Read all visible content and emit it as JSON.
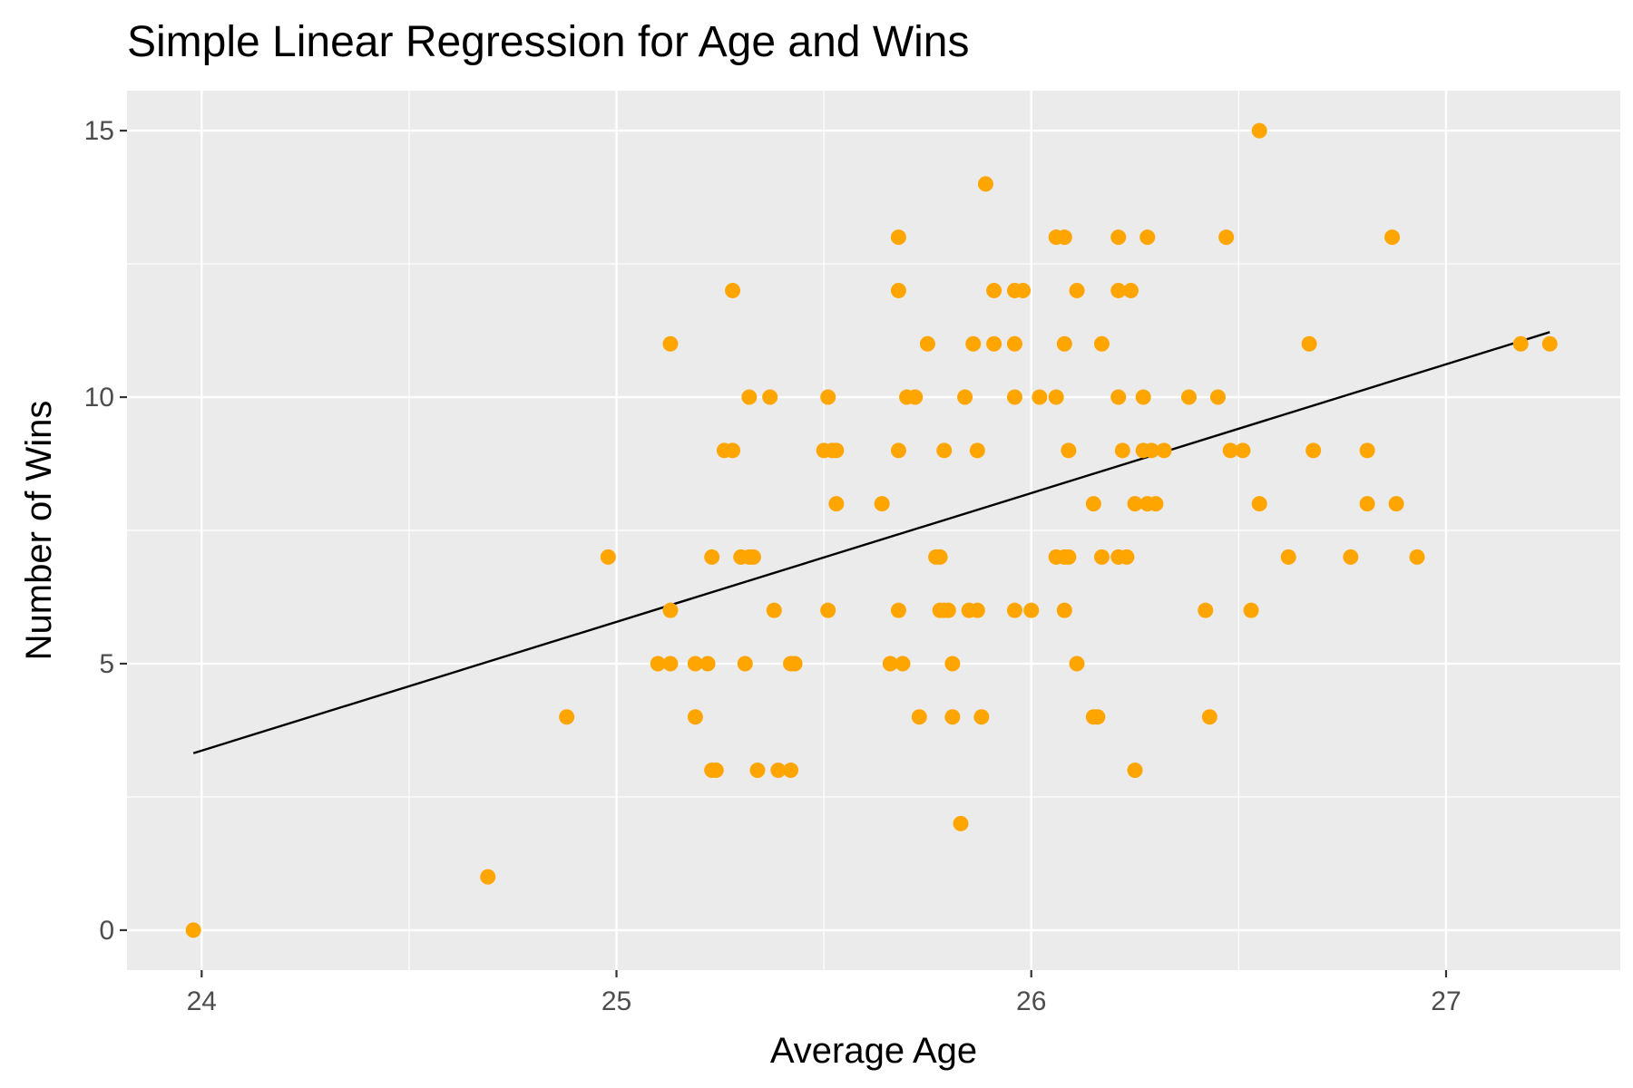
{
  "chart_data": {
    "type": "scatter",
    "title": "Simple Linear Regression for Age and Wins",
    "xlabel": "Average Age",
    "ylabel": "Number of Wins",
    "xlim": [
      23.82,
      27.42
    ],
    "ylim": [
      -0.75,
      15.75
    ],
    "xticks": [
      24,
      25,
      26,
      27
    ],
    "xtick_labels": [
      "24",
      "25",
      "26",
      "27"
    ],
    "yticks": [
      0,
      5,
      10,
      15
    ],
    "ytick_labels": [
      "0",
      "5",
      "10",
      "15"
    ],
    "x_minor": [
      24.5,
      25.5,
      26.5
    ],
    "y_minor": [
      2.5,
      7.5,
      12.5
    ],
    "grid": true,
    "legend": "none",
    "colors": {
      "panel": "#ebebeb",
      "grid": "#ffffff",
      "point": "#ffa500",
      "line": "#000000",
      "tick": "#333333"
    },
    "regression_line": {
      "x": [
        23.98,
        27.25
      ],
      "y": [
        3.32,
        11.22
      ]
    },
    "series": [
      {
        "points": [
          {
            "x": 23.98,
            "y": 0
          },
          {
            "x": 24.69,
            "y": 1
          },
          {
            "x": 24.88,
            "y": 4
          },
          {
            "x": 24.98,
            "y": 7
          },
          {
            "x": 25.1,
            "y": 5
          },
          {
            "x": 25.13,
            "y": 5
          },
          {
            "x": 25.13,
            "y": 11
          },
          {
            "x": 25.13,
            "y": 6
          },
          {
            "x": 25.19,
            "y": 5
          },
          {
            "x": 25.19,
            "y": 4
          },
          {
            "x": 25.22,
            "y": 5
          },
          {
            "x": 25.23,
            "y": 7
          },
          {
            "x": 25.23,
            "y": 3
          },
          {
            "x": 25.24,
            "y": 3
          },
          {
            "x": 25.26,
            "y": 9
          },
          {
            "x": 25.28,
            "y": 9
          },
          {
            "x": 25.28,
            "y": 12
          },
          {
            "x": 25.3,
            "y": 7
          },
          {
            "x": 25.31,
            "y": 5
          },
          {
            "x": 25.32,
            "y": 7
          },
          {
            "x": 25.32,
            "y": 10
          },
          {
            "x": 25.33,
            "y": 7
          },
          {
            "x": 25.34,
            "y": 3
          },
          {
            "x": 25.37,
            "y": 10
          },
          {
            "x": 25.38,
            "y": 6
          },
          {
            "x": 25.39,
            "y": 3
          },
          {
            "x": 25.42,
            "y": 3
          },
          {
            "x": 25.42,
            "y": 5
          },
          {
            "x": 25.43,
            "y": 5
          },
          {
            "x": 25.5,
            "y": 9
          },
          {
            "x": 25.51,
            "y": 10
          },
          {
            "x": 25.51,
            "y": 6
          },
          {
            "x": 25.52,
            "y": 9
          },
          {
            "x": 25.53,
            "y": 8
          },
          {
            "x": 25.53,
            "y": 9
          },
          {
            "x": 25.64,
            "y": 8
          },
          {
            "x": 25.66,
            "y": 5
          },
          {
            "x": 25.68,
            "y": 13
          },
          {
            "x": 25.68,
            "y": 12
          },
          {
            "x": 25.68,
            "y": 9
          },
          {
            "x": 25.68,
            "y": 6
          },
          {
            "x": 25.69,
            "y": 5
          },
          {
            "x": 25.7,
            "y": 10
          },
          {
            "x": 25.72,
            "y": 10
          },
          {
            "x": 25.73,
            "y": 4
          },
          {
            "x": 25.75,
            "y": 11
          },
          {
            "x": 25.77,
            "y": 7
          },
          {
            "x": 25.78,
            "y": 7
          },
          {
            "x": 25.78,
            "y": 6
          },
          {
            "x": 25.79,
            "y": 9
          },
          {
            "x": 25.79,
            "y": 6
          },
          {
            "x": 25.8,
            "y": 6
          },
          {
            "x": 25.81,
            "y": 5
          },
          {
            "x": 25.81,
            "y": 4
          },
          {
            "x": 25.83,
            "y": 2
          },
          {
            "x": 25.84,
            "y": 10
          },
          {
            "x": 25.85,
            "y": 6
          },
          {
            "x": 25.86,
            "y": 11
          },
          {
            "x": 25.87,
            "y": 9
          },
          {
            "x": 25.87,
            "y": 6
          },
          {
            "x": 25.88,
            "y": 4
          },
          {
            "x": 25.89,
            "y": 14
          },
          {
            "x": 25.91,
            "y": 12
          },
          {
            "x": 25.91,
            "y": 11
          },
          {
            "x": 25.96,
            "y": 12
          },
          {
            "x": 25.96,
            "y": 11
          },
          {
            "x": 25.96,
            "y": 10
          },
          {
            "x": 25.96,
            "y": 6
          },
          {
            "x": 25.98,
            "y": 12
          },
          {
            "x": 26.0,
            "y": 6
          },
          {
            "x": 26.02,
            "y": 10
          },
          {
            "x": 26.06,
            "y": 10
          },
          {
            "x": 26.06,
            "y": 7
          },
          {
            "x": 26.06,
            "y": 13
          },
          {
            "x": 26.08,
            "y": 13
          },
          {
            "x": 26.08,
            "y": 11
          },
          {
            "x": 26.08,
            "y": 6
          },
          {
            "x": 26.08,
            "y": 7
          },
          {
            "x": 26.09,
            "y": 9
          },
          {
            "x": 26.09,
            "y": 7
          },
          {
            "x": 26.11,
            "y": 12
          },
          {
            "x": 26.11,
            "y": 5
          },
          {
            "x": 26.15,
            "y": 8
          },
          {
            "x": 26.15,
            "y": 4
          },
          {
            "x": 26.16,
            "y": 4
          },
          {
            "x": 26.17,
            "y": 11
          },
          {
            "x": 26.17,
            "y": 7
          },
          {
            "x": 26.21,
            "y": 13
          },
          {
            "x": 26.21,
            "y": 12
          },
          {
            "x": 26.21,
            "y": 10
          },
          {
            "x": 26.21,
            "y": 7
          },
          {
            "x": 26.22,
            "y": 9
          },
          {
            "x": 26.23,
            "y": 7
          },
          {
            "x": 26.24,
            "y": 12
          },
          {
            "x": 26.25,
            "y": 8
          },
          {
            "x": 26.25,
            "y": 3
          },
          {
            "x": 26.27,
            "y": 9
          },
          {
            "x": 26.27,
            "y": 10
          },
          {
            "x": 26.28,
            "y": 13
          },
          {
            "x": 26.28,
            "y": 8
          },
          {
            "x": 26.29,
            "y": 9
          },
          {
            "x": 26.3,
            "y": 8
          },
          {
            "x": 26.32,
            "y": 9
          },
          {
            "x": 26.38,
            "y": 10
          },
          {
            "x": 26.42,
            "y": 6
          },
          {
            "x": 26.43,
            "y": 4
          },
          {
            "x": 26.45,
            "y": 10
          },
          {
            "x": 26.47,
            "y": 13
          },
          {
            "x": 26.48,
            "y": 9
          },
          {
            "x": 26.51,
            "y": 9
          },
          {
            "x": 26.53,
            "y": 6
          },
          {
            "x": 26.55,
            "y": 15
          },
          {
            "x": 26.55,
            "y": 8
          },
          {
            "x": 26.62,
            "y": 7
          },
          {
            "x": 26.67,
            "y": 11
          },
          {
            "x": 26.68,
            "y": 9
          },
          {
            "x": 26.77,
            "y": 7
          },
          {
            "x": 26.81,
            "y": 9
          },
          {
            "x": 26.81,
            "y": 8
          },
          {
            "x": 26.87,
            "y": 13
          },
          {
            "x": 26.88,
            "y": 8
          },
          {
            "x": 26.93,
            "y": 7
          },
          {
            "x": 27.18,
            "y": 11
          },
          {
            "x": 27.25,
            "y": 11
          }
        ]
      }
    ]
  }
}
